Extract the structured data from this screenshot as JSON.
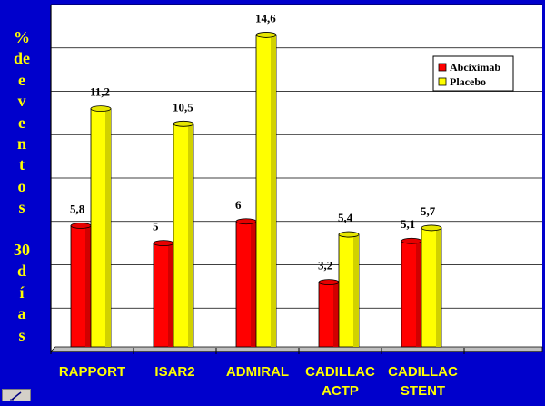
{
  "chart_data": {
    "type": "bar",
    "categories": [
      [
        "RAPPORT"
      ],
      [
        "ISAR2"
      ],
      [
        "ADMIRAL"
      ],
      [
        "CADILLAC",
        "ACTP"
      ],
      [
        "CADILLAC",
        "STENT"
      ]
    ],
    "series": [
      {
        "name": "Abciximab",
        "color": "#ff0000",
        "values": [
          5.8,
          5,
          6,
          3.2,
          5.1
        ],
        "labels": [
          "5,8",
          "5",
          "6",
          "3,2",
          "5,1"
        ]
      },
      {
        "name": "Placebo",
        "color": "#ffff00",
        "values": [
          11.2,
          10.5,
          14.6,
          5.4,
          5.7
        ],
        "labels": [
          "11,2",
          "10,5",
          "14,6",
          "5,4",
          "5,7"
        ]
      }
    ],
    "ylabel": [
      "%",
      "de",
      "e",
      "v",
      "e",
      "n",
      "t",
      "o",
      "s",
      "",
      "30",
      "d",
      "í",
      "a",
      "s"
    ],
    "ylim": [
      0,
      16
    ],
    "grid": true,
    "legend": "top-right"
  },
  "colors": {
    "background": "#0000cc",
    "plot_area": "#ffffff",
    "text": "#ffff00"
  },
  "icons": [
    "pen-icon"
  ]
}
